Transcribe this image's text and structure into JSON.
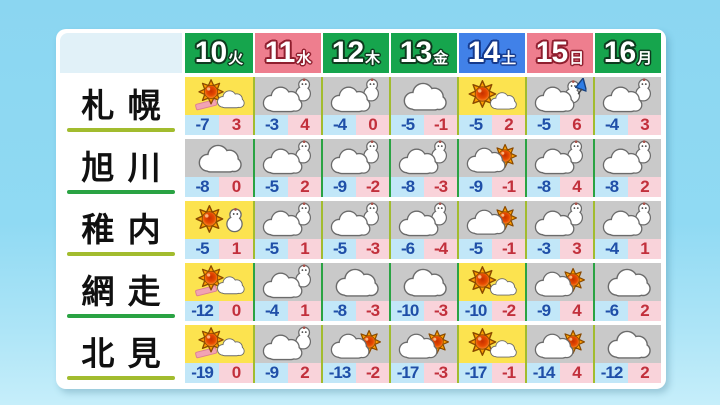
{
  "chart_data": {
    "type": "table",
    "columns": [
      {
        "day": "10",
        "weekday": "火",
        "type": "weekday"
      },
      {
        "day": "11",
        "weekday": "水",
        "type": "holiday"
      },
      {
        "day": "12",
        "weekday": "木",
        "type": "weekday"
      },
      {
        "day": "13",
        "weekday": "金",
        "type": "weekday"
      },
      {
        "day": "14",
        "weekday": "土",
        "type": "saturday"
      },
      {
        "day": "15",
        "weekday": "日",
        "type": "sunday"
      },
      {
        "day": "16",
        "weekday": "月",
        "type": "weekday"
      }
    ],
    "rows": [
      {
        "city": "札幌",
        "line": "olive",
        "cells": [
          {
            "icon": "sun-cloud-ground",
            "bg": "sunny",
            "low": "-7",
            "high": "3"
          },
          {
            "icon": "cloud-snowman",
            "bg": "cloudy",
            "low": "-3",
            "high": "4"
          },
          {
            "icon": "cloud-snowman",
            "bg": "cloudy",
            "low": "-4",
            "high": "0"
          },
          {
            "icon": "cloud",
            "bg": "cloudy",
            "low": "-5",
            "high": "-1"
          },
          {
            "icon": "sun-cloud",
            "bg": "sunny",
            "low": "-5",
            "high": "2"
          },
          {
            "icon": "cloud-snowman-umbrella",
            "bg": "cloudy",
            "low": "-5",
            "high": "6"
          },
          {
            "icon": "cloud-snowman",
            "bg": "cloudy",
            "low": "-4",
            "high": "3"
          }
        ]
      },
      {
        "city": "旭川",
        "line": "green",
        "cells": [
          {
            "icon": "cloud",
            "bg": "cloudy",
            "low": "-8",
            "high": "0"
          },
          {
            "icon": "cloud-snowman",
            "bg": "cloudy",
            "low": "-5",
            "high": "2"
          },
          {
            "icon": "cloud-snowman",
            "bg": "cloudy",
            "low": "-9",
            "high": "-2"
          },
          {
            "icon": "cloud-snowman",
            "bg": "cloudy",
            "low": "-8",
            "high": "-3"
          },
          {
            "icon": "cloud-sun",
            "bg": "cloudy",
            "low": "-9",
            "high": "-1"
          },
          {
            "icon": "cloud-snowman",
            "bg": "cloudy",
            "low": "-8",
            "high": "4"
          },
          {
            "icon": "cloud-snowman",
            "bg": "cloudy",
            "low": "-8",
            "high": "2"
          }
        ]
      },
      {
        "city": "稚内",
        "line": "olive",
        "cells": [
          {
            "icon": "sun-snowman",
            "bg": "sunny",
            "low": "-5",
            "high": "1"
          },
          {
            "icon": "cloud-snowman",
            "bg": "cloudy",
            "low": "-5",
            "high": "1"
          },
          {
            "icon": "cloud-snowman",
            "bg": "cloudy",
            "low": "-5",
            "high": "-3"
          },
          {
            "icon": "cloud-snowman",
            "bg": "cloudy",
            "low": "-6",
            "high": "-4"
          },
          {
            "icon": "cloud-sun",
            "bg": "cloudy",
            "low": "-5",
            "high": "-1"
          },
          {
            "icon": "cloud-snowman",
            "bg": "cloudy",
            "low": "-3",
            "high": "3"
          },
          {
            "icon": "cloud-snowman",
            "bg": "cloudy",
            "low": "-4",
            "high": "1"
          }
        ]
      },
      {
        "city": "網走",
        "line": "green",
        "cells": [
          {
            "icon": "sun-cloud-ground",
            "bg": "sunny",
            "low": "-12",
            "high": "0"
          },
          {
            "icon": "cloud-snowman",
            "bg": "cloudy",
            "low": "-4",
            "high": "1"
          },
          {
            "icon": "cloud",
            "bg": "cloudy",
            "low": "-8",
            "high": "-3"
          },
          {
            "icon": "cloud",
            "bg": "cloudy",
            "low": "-10",
            "high": "-3"
          },
          {
            "icon": "sun-cloud",
            "bg": "sunny",
            "low": "-10",
            "high": "-2"
          },
          {
            "icon": "cloud-sun",
            "bg": "cloudy",
            "low": "-9",
            "high": "4"
          },
          {
            "icon": "cloud",
            "bg": "cloudy",
            "low": "-6",
            "high": "2"
          }
        ]
      },
      {
        "city": "北見",
        "line": "olive",
        "cells": [
          {
            "icon": "sun-cloud-ground",
            "bg": "sunny",
            "low": "-19",
            "high": "0"
          },
          {
            "icon": "cloud-snowman",
            "bg": "cloudy",
            "low": "-9",
            "high": "2"
          },
          {
            "icon": "cloud-sun",
            "bg": "cloudy",
            "low": "-13",
            "high": "-2"
          },
          {
            "icon": "cloud-sun",
            "bg": "cloudy",
            "low": "-17",
            "high": "-3"
          },
          {
            "icon": "sun-cloud",
            "bg": "sunny",
            "low": "-17",
            "high": "-1"
          },
          {
            "icon": "cloud-sun",
            "bg": "cloudy",
            "low": "-14",
            "high": "4"
          },
          {
            "icon": "cloud",
            "bg": "cloudy",
            "low": "-12",
            "high": "2"
          }
        ]
      }
    ]
  },
  "colors": {
    "header_weekday_bg": "#16a54d",
    "header_holiday_bg": "#ee7e8e",
    "header_saturday_bg": "#4181e8",
    "cell_sunny_bg": "#fce34f",
    "cell_cloudy_bg": "#c9c9c9",
    "low_temp_bg": "#c2e7f8",
    "low_temp_text": "#1f4fa8",
    "high_temp_bg": "#f9d3da",
    "high_temp_text": "#c2303c",
    "row_line_olive": "#a2bc2e",
    "row_line_green": "#2aa343"
  }
}
